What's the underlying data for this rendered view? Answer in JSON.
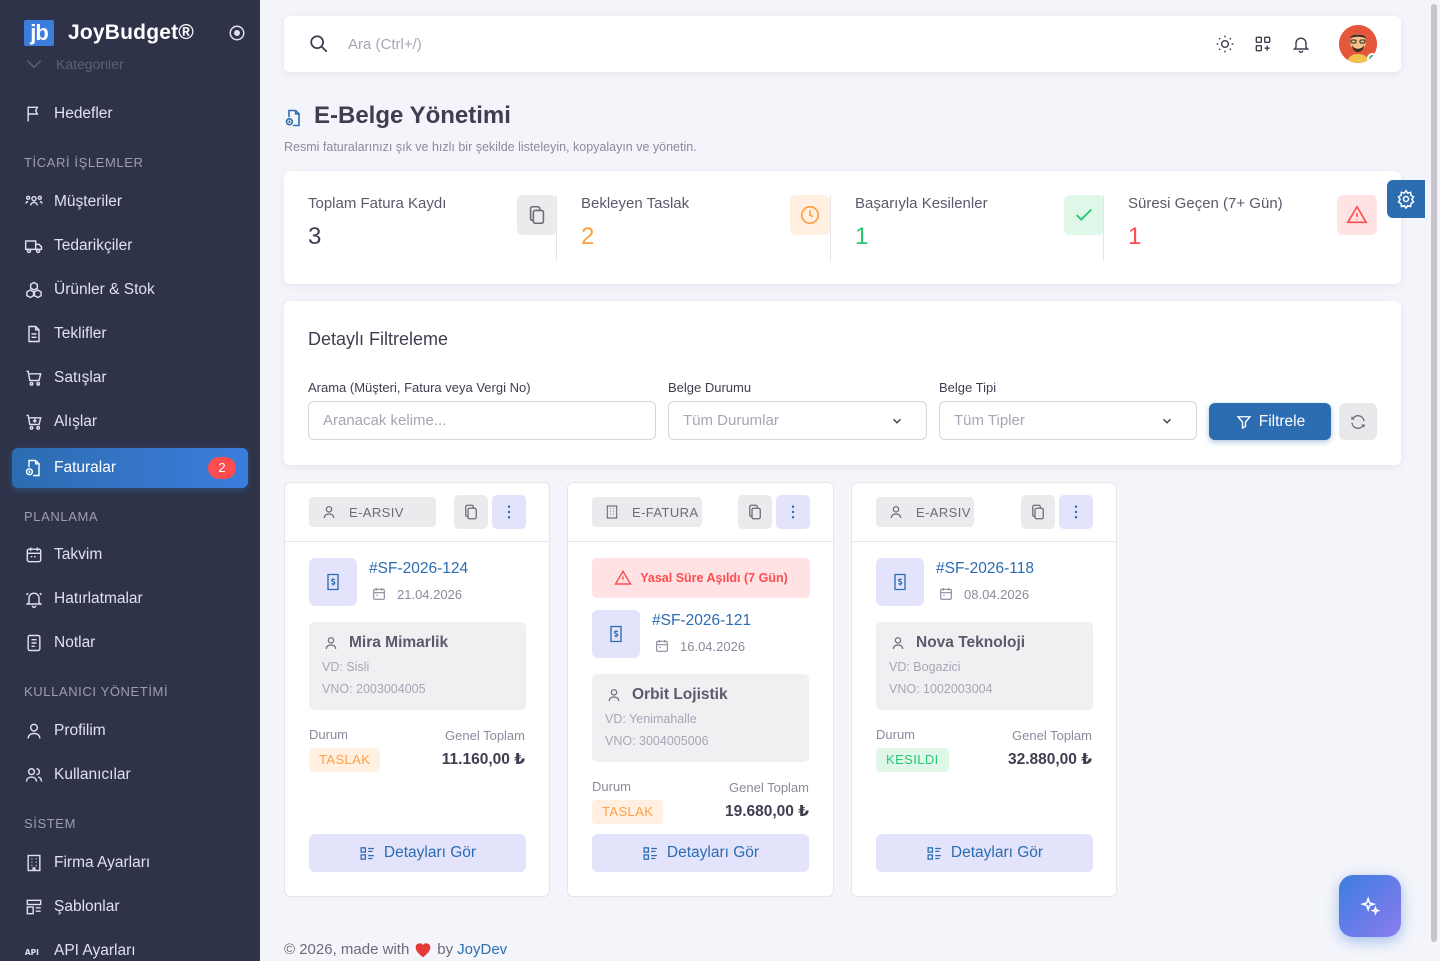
{
  "brand": {
    "logo": "jb",
    "name": "JoyBudget®"
  },
  "sidebar": {
    "cut_item": "Kategoriler",
    "items": [
      {
        "label": "Hedefler",
        "icon": "flag-icon"
      },
      {
        "label": "Müşteriler",
        "icon": "users-icon"
      },
      {
        "label": "Tedarikçiler",
        "icon": "truck-icon"
      },
      {
        "label": "Ürünler & Stok",
        "icon": "boxes-icon"
      },
      {
        "label": "Teklifler",
        "icon": "file-icon"
      },
      {
        "label": "Satışlar",
        "icon": "cart-icon"
      },
      {
        "label": "Alışlar",
        "icon": "cart-in-icon"
      },
      {
        "label": "Faturalar",
        "icon": "invoice-icon",
        "badge": "2",
        "active": true
      },
      {
        "label": "Takvim",
        "icon": "calendar-icon"
      },
      {
        "label": "Hatırlatmalar",
        "icon": "bell-ring-icon"
      },
      {
        "label": "Notlar",
        "icon": "note-icon"
      },
      {
        "label": "Profilim",
        "icon": "user-icon"
      },
      {
        "label": "Kullanıcılar",
        "icon": "users-two-icon"
      },
      {
        "label": "Firma Ayarları",
        "icon": "building-icon"
      },
      {
        "label": "Şablonlar",
        "icon": "template-icon"
      },
      {
        "label": "API Ayarları",
        "icon": "api-icon"
      }
    ],
    "sections": {
      "ticari": "TİCARİ İŞLEMLER",
      "planlama": "PLANLAMA",
      "kullanici": "KULLANICI YÖNETİMİ",
      "sistem": "SİSTEM"
    }
  },
  "topbar": {
    "search_placeholder": "Ara (Ctrl+/)"
  },
  "page": {
    "title": "E-Belge Yönetimi",
    "subtitle": "Resmi faturalarınızı şık ve hızlı bir şekilde listeleyin, kopyalayın ve yönetin."
  },
  "stats": [
    {
      "label": "Toplam Fatura Kaydı",
      "value": "3",
      "color": "#433c50",
      "icon": "copy-icon",
      "icon_bg": "#ebebee",
      "icon_color": "#6d6b77"
    },
    {
      "label": "Bekleyen Taslak",
      "value": "2",
      "color": "#ff9f43",
      "icon": "clock-icon",
      "icon_bg": "#fff0e1",
      "icon_color": "#ff9f43"
    },
    {
      "label": "Başarıyla Kesilenler",
      "value": "1",
      "color": "#28c76f",
      "icon": "check-icon",
      "icon_bg": "#dff7e9",
      "icon_color": "#28c76f"
    },
    {
      "label": "Süresi Geçen (7+ Gün)",
      "value": "1",
      "color": "#ff4c51",
      "icon": "alert-triangle-icon",
      "icon_bg": "#ffe2e3",
      "icon_color": "#ff4c51"
    }
  ],
  "filters": {
    "title": "Detaylı Filtreleme",
    "search_label": "Arama (Müşteri, Fatura veya Vergi No)",
    "search_placeholder": "Aranacak kelime...",
    "status_label": "Belge Durumu",
    "status_value": "Tüm Durumlar",
    "type_label": "Belge Tipi",
    "type_value": "Tüm Tipler",
    "filter_button": "Filtrele"
  },
  "invoices": [
    {
      "type": "E-ARSIV",
      "type_icon": "user-icon",
      "number": "#SF-2026-124",
      "date": "21.04.2026",
      "customer": "Mira Mimarlik",
      "vd": "VD: Sisli",
      "vno": "VNO: 2003004005",
      "status_label": "Durum",
      "status": "TASLAK",
      "total_label": "Genel Toplam",
      "total": "11.160,00 ₺",
      "detail_button": "Detayları Gör"
    },
    {
      "type": "E-FATURA",
      "type_icon": "building-icon",
      "warning": "Yasal Süre Aşıldı (7 Gün)",
      "number": "#SF-2026-121",
      "date": "16.04.2026",
      "customer": "Orbit Lojistik",
      "vd": "VD: Yenimahalle",
      "vno": "VNO: 3004005006",
      "status_label": "Durum",
      "status": "TASLAK",
      "total_label": "Genel Toplam",
      "total": "19.680,00 ₺",
      "detail_button": "Detayları Gör"
    },
    {
      "type": "E-ARSIV",
      "type_icon": "user-icon",
      "number": "#SF-2026-118",
      "date": "08.04.2026",
      "customer": "Nova Teknoloji",
      "vd": "VD: Bogazici",
      "vno": "VNO: 1002003004",
      "status_label": "Durum",
      "status": "KESILDI",
      "total_label": "Genel Toplam",
      "total": "32.880,00 ₺",
      "detail_button": "Detayları Gör"
    }
  ],
  "footer": {
    "prefix": "© 2026, made with",
    "by": "by",
    "link": "JoyDev"
  },
  "colors": {
    "primary": "#2c6cb0",
    "sidebar_bg": "#2f3349",
    "danger": "#ff4c51",
    "warning": "#ff9f43",
    "success": "#28c76f"
  }
}
